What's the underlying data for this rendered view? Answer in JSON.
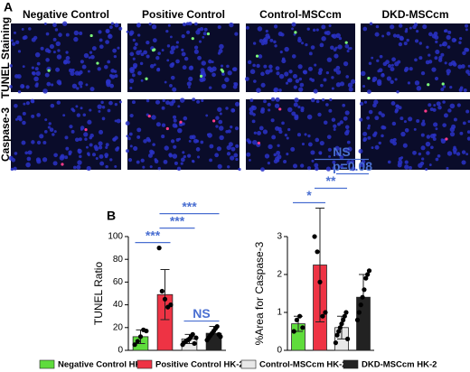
{
  "figure": {
    "panel_a": {
      "label": "A",
      "columns": [
        "Negative Control",
        "Positive Control",
        "Control-MSCcm",
        "DKD-MSCcm"
      ],
      "rows": [
        "TUNEL Staining",
        "Caspase-3"
      ]
    },
    "panel_b": {
      "label": "B"
    },
    "legend": [
      {
        "name": "Negative Control HK-2",
        "color": "#5fdc3c"
      },
      {
        "name": "Positive Control HK-2",
        "color": "#ee3344"
      },
      {
        "name": "Control-MSCcm HK-2",
        "color": "#e8e8e8"
      },
      {
        "name": "DKD-MSCcm HK-2",
        "color": "#222222"
      }
    ]
  },
  "chart_data": [
    {
      "type": "bar",
      "y_label": "TUNEL Ratio",
      "values": [
        12,
        49,
        10,
        15
      ],
      "errors": [
        6,
        22,
        4,
        6
      ],
      "points": [
        [
          5,
          8,
          12,
          18,
          17
        ],
        [
          90,
          52,
          45,
          38,
          40
        ],
        [
          5,
          7,
          8,
          9,
          10,
          12,
          14,
          6,
          11
        ],
        [
          9,
          11,
          13,
          15,
          17,
          19,
          21,
          14,
          12
        ]
      ],
      "ylim": [
        0,
        100
      ],
      "yticks": [
        0,
        20,
        40,
        60,
        80,
        100
      ],
      "annotations": [
        {
          "text": "***",
          "from": 0,
          "to": 1
        },
        {
          "text": "NS",
          "from": 2,
          "to": 3
        },
        {
          "text": "***",
          "from": 1,
          "to": 2
        },
        {
          "text": "***",
          "from": 1,
          "to": 3
        }
      ]
    },
    {
      "type": "bar",
      "y_label": "%Area for Caspase-3",
      "values": [
        0.7,
        2.25,
        0.6,
        1.4
      ],
      "errors": [
        0.2,
        1.5,
        0.3,
        0.6
      ],
      "points": [
        [
          0.5,
          0.8,
          0.9,
          0.6
        ],
        [
          3.0,
          2.6,
          1.8,
          0.9,
          1.0
        ],
        [
          0.2,
          0.4,
          0.5,
          0.6,
          0.7,
          0.8,
          0.9,
          1.0,
          0.3
        ],
        [
          0.8,
          1.0,
          1.2,
          1.4,
          1.6,
          1.9,
          2.0,
          2.1
        ]
      ],
      "ylim": [
        0,
        3
      ],
      "yticks": [
        0,
        1,
        2,
        3
      ],
      "annotations": [
        {
          "text": "*",
          "from": 0,
          "to": 1
        },
        {
          "text": "**",
          "from": 1,
          "to": 2
        },
        {
          "text": "p=0.08",
          "from": 2,
          "to": 3
        },
        {
          "text": "NS",
          "from": 1,
          "to": 3
        }
      ]
    }
  ]
}
